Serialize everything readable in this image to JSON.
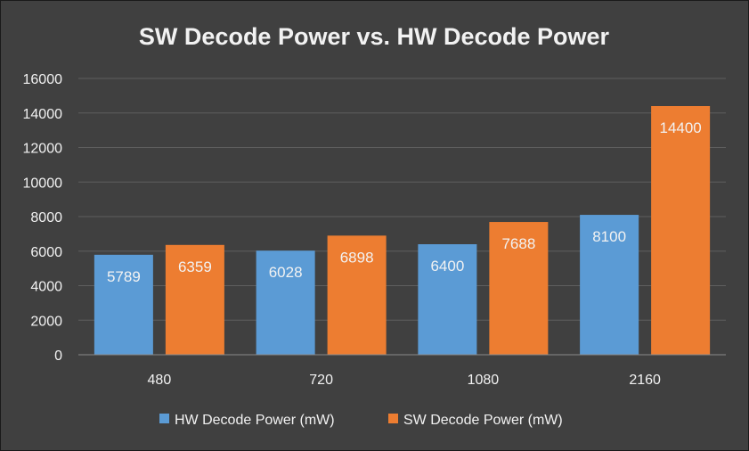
{
  "chart_data": {
    "type": "bar",
    "title": "SW Decode Power vs. HW Decode Power",
    "categories": [
      "480",
      "720",
      "1080",
      "2160"
    ],
    "series": [
      {
        "name": "HW Decode Power (mW)",
        "values": [
          5789,
          6028,
          6400,
          8100
        ],
        "color": "#5b9bd5"
      },
      {
        "name": "SW Decode Power (mW)",
        "values": [
          6359,
          6898,
          7688,
          14400
        ],
        "color": "#ed7d31"
      }
    ],
    "ylim": [
      0,
      16000
    ],
    "yticks": [
      "0",
      "2000",
      "4000",
      "6000",
      "8000",
      "10000",
      "12000",
      "14000",
      "16000"
    ],
    "grid": true,
    "legend": "bottom",
    "background": "#404040"
  }
}
